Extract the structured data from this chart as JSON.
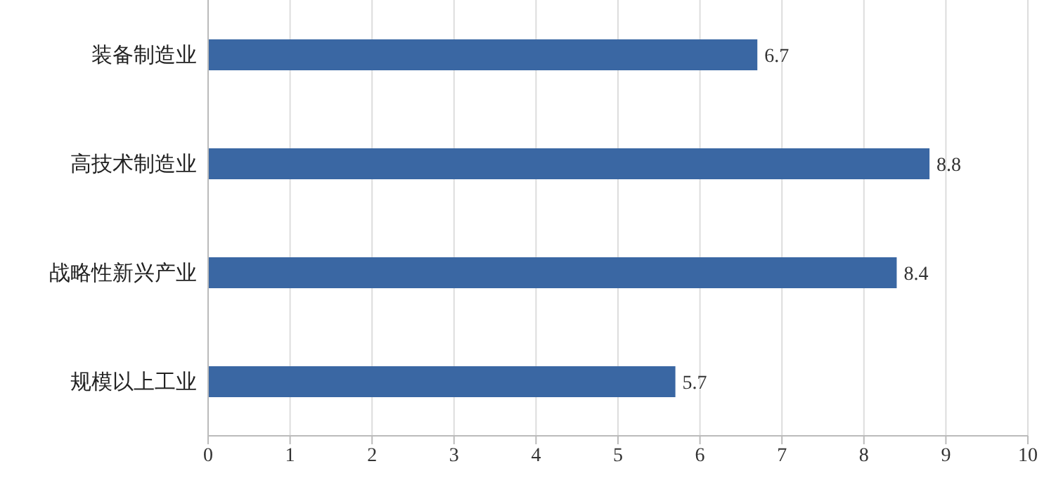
{
  "chart_data": {
    "type": "bar",
    "orientation": "horizontal",
    "categories": [
      "装备制造业",
      "高技术制造业",
      "战略性新兴产业",
      "规模以上工业"
    ],
    "values": [
      6.7,
      8.8,
      8.4,
      5.7
    ],
    "color": "#3a67a3",
    "xlim": [
      0,
      10
    ],
    "xticks": [
      0,
      1,
      2,
      3,
      4,
      5,
      6,
      7,
      8,
      9,
      10
    ],
    "grid": "x",
    "data_labels": true
  }
}
